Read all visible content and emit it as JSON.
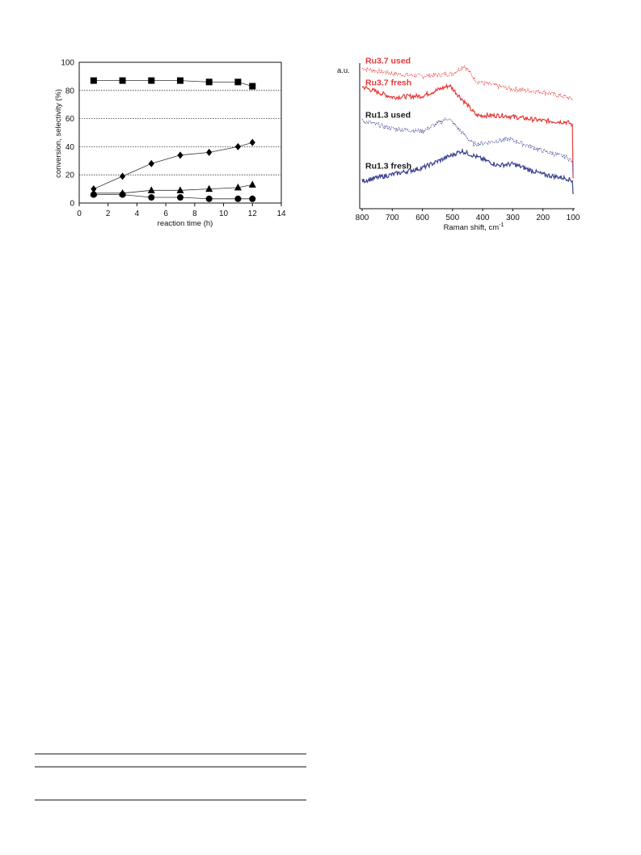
{
  "chart_data": [
    {
      "type": "line",
      "xlabel": "reaction time (h)",
      "ylabel": "conversion, selectivity (%)",
      "xlim": [
        0,
        14
      ],
      "ylim": [
        0,
        100
      ],
      "xticks": [
        "0",
        "2",
        "4",
        "6",
        "8",
        "10",
        "12",
        "14"
      ],
      "yticks": [
        "0",
        "20",
        "40",
        "60",
        "80",
        "100"
      ],
      "grid": "horizontal dotted",
      "series": [
        {
          "marker": "square",
          "x": [
            1,
            3,
            5,
            7,
            9,
            11,
            12
          ],
          "values": [
            87,
            87,
            87,
            87,
            86,
            86,
            83
          ]
        },
        {
          "marker": "diamond",
          "x": [
            1,
            3,
            5,
            7,
            9,
            11,
            12
          ],
          "values": [
            10,
            19,
            28,
            34,
            36,
            40,
            43
          ]
        },
        {
          "marker": "triangle",
          "x": [
            1,
            3,
            5,
            7,
            9,
            11,
            12
          ],
          "values": [
            7,
            7,
            9,
            9,
            10,
            11,
            13
          ]
        },
        {
          "marker": "circle",
          "x": [
            1,
            3,
            5,
            7,
            9,
            11,
            12
          ],
          "values": [
            6,
            6,
            4,
            4,
            3,
            3,
            3
          ]
        }
      ]
    },
    {
      "type": "line",
      "xlabel": "Raman shift, cm",
      "xlabel_sup": "-1",
      "ylabel": "a.u.",
      "xlim": [
        800,
        100
      ],
      "xticks": [
        "800",
        "700",
        "600",
        "500",
        "400",
        "300",
        "200",
        "100"
      ],
      "series": [
        {
          "name": "Ru3.7 used",
          "color": "#e53935",
          "style": "dotted",
          "x": [
            800,
            700,
            600,
            500,
            460,
            420,
            300,
            200,
            120,
            100
          ],
          "values": [
            0.96,
            0.92,
            0.9,
            0.92,
            0.98,
            0.86,
            0.8,
            0.78,
            0.74,
            0.72
          ]
        },
        {
          "name": "Ru3.7 fresh",
          "color": "#e53935",
          "style": "solid",
          "x": [
            800,
            700,
            600,
            510,
            420,
            330,
            200,
            120,
            102,
            100
          ],
          "values": [
            0.82,
            0.74,
            0.75,
            0.83,
            0.6,
            0.6,
            0.56,
            0.55,
            0.53,
            0.12
          ]
        },
        {
          "name": "Ru1.3 used",
          "color": "#3a3f8f",
          "style": "dotted",
          "x": [
            800,
            700,
            600,
            515,
            430,
            310,
            200,
            120,
            102,
            100
          ],
          "values": [
            0.56,
            0.5,
            0.48,
            0.58,
            0.38,
            0.42,
            0.33,
            0.28,
            0.25,
            0.15
          ]
        },
        {
          "name": "Ru1.3 fresh",
          "color": "#3a3f8f",
          "style": "solid",
          "x": [
            800,
            700,
            600,
            470,
            350,
            300,
            200,
            120,
            102,
            100
          ],
          "values": [
            0.1,
            0.15,
            0.2,
            0.33,
            0.22,
            0.23,
            0.15,
            0.12,
            0.1,
            0.0
          ]
        }
      ]
    }
  ]
}
